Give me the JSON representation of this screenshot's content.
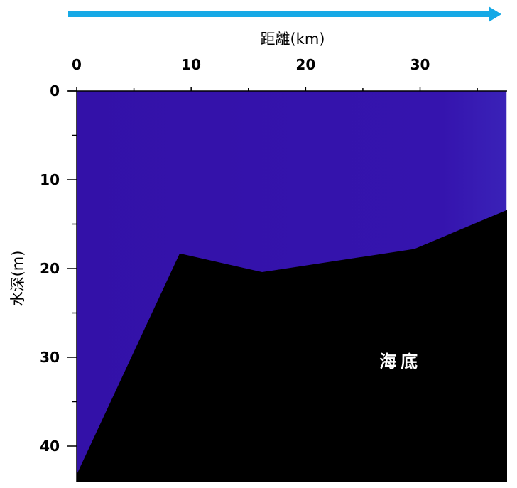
{
  "chart_data": {
    "type": "area",
    "xlabel": "距離(km)",
    "ylabel": "水深(m)",
    "xlim": [
      0,
      37.6
    ],
    "ylim": [
      0,
      44
    ],
    "y_inverted": true,
    "x_ticks": [
      0,
      10,
      20,
      30
    ],
    "y_ticks": [
      0,
      10,
      20,
      30,
      40
    ],
    "x_axis_position": "top",
    "grid": false,
    "seabed_profile": {
      "x": [
        0,
        9,
        16.2,
        29.5,
        37.6
      ],
      "depth": [
        43.2,
        18.3,
        20.4,
        17.8,
        13.4
      ]
    },
    "region_label": "海底",
    "colors": {
      "water": "#3311a8",
      "seabed": "#000000",
      "arrow": "#16a9e6"
    }
  }
}
